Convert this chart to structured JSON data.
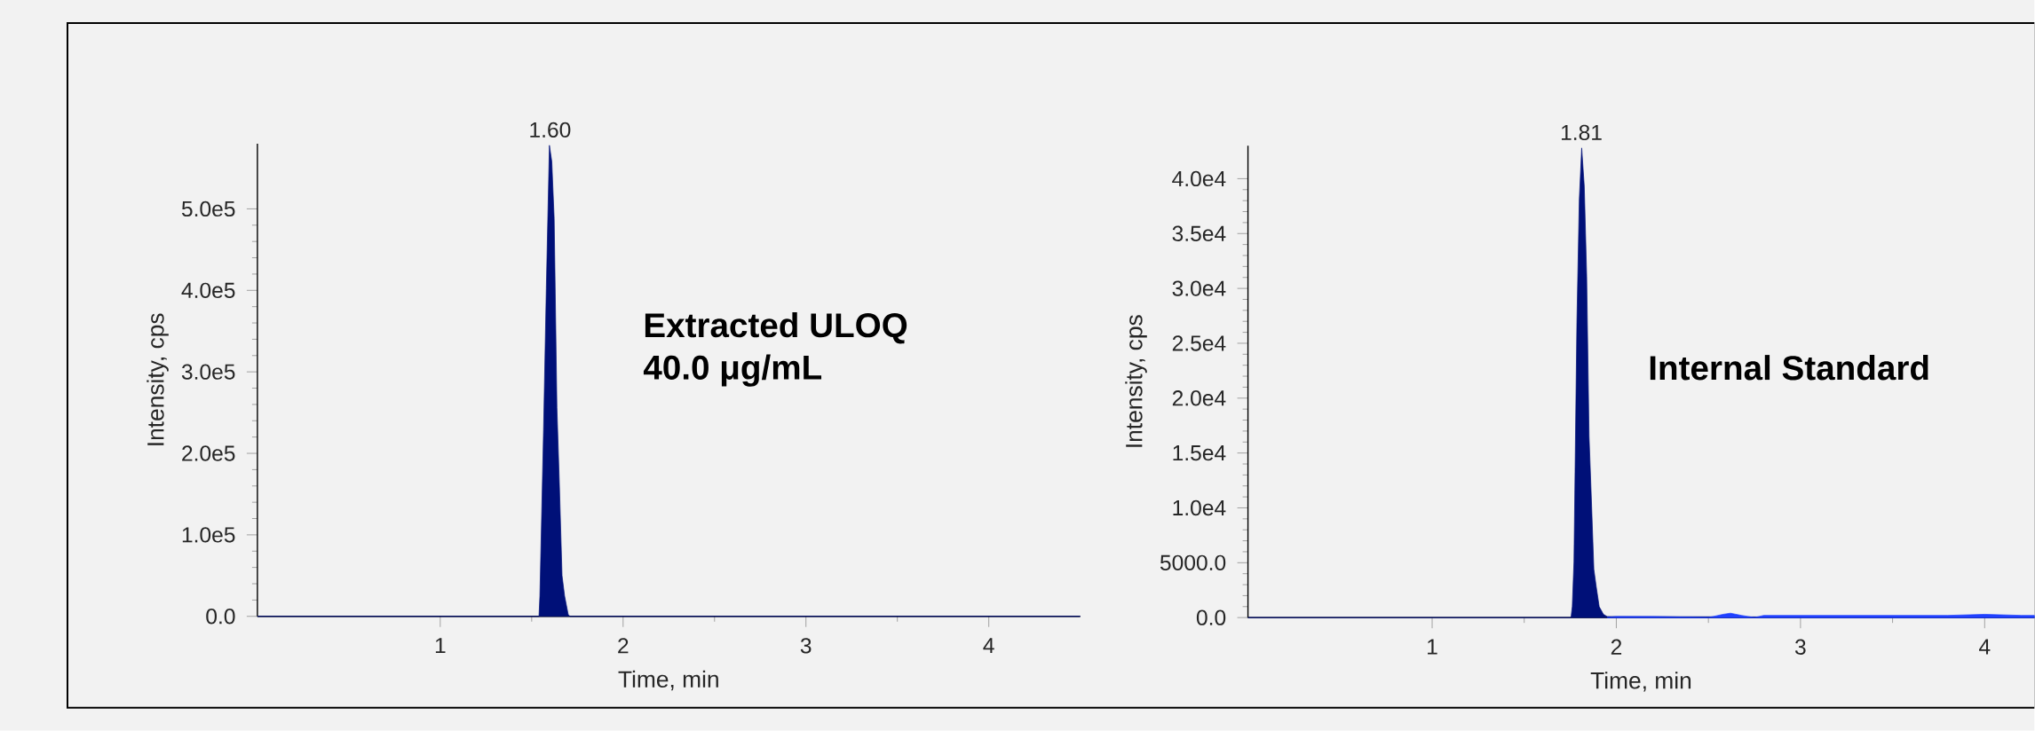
{
  "chart_data": [
    {
      "type": "area",
      "xlabel": "Time, min",
      "ylabel": "Intensity, cps",
      "xlim": [
        0,
        4.5
      ],
      "ylim": [
        0,
        580000
      ],
      "xticks": [
        1,
        2,
        3,
        4
      ],
      "yticks": [
        {
          "value": 0,
          "label": "0.0"
        },
        {
          "value": 100000,
          "label": "1.0e5"
        },
        {
          "value": 200000,
          "label": "2.0e5"
        },
        {
          "value": 300000,
          "label": "3.0e5"
        },
        {
          "value": 400000,
          "label": "4.0e5"
        },
        {
          "value": 500000,
          "label": "5.0e5"
        }
      ],
      "series": [
        {
          "color": "#001078",
          "x": [
            0,
            1.54,
            1.545,
            1.565,
            1.58,
            1.597,
            1.61,
            1.623,
            1.638,
            1.651,
            1.666,
            1.68,
            1.7,
            1.71,
            4.5
          ],
          "values": [
            0,
            0,
            25000,
            229000,
            402000,
            578000,
            558000,
            488000,
            256000,
            165000,
            50000,
            25000,
            2000,
            0,
            0
          ]
        }
      ],
      "annotations": [
        {
          "text": "1.60",
          "x": 1.6,
          "y": 578000
        },
        "Extracted ULOQ",
        "40.0 μg/mL"
      ]
    },
    {
      "type": "area",
      "xlabel": "Time, min",
      "ylabel": "Intensity, cps",
      "xlim": [
        0,
        4.27
      ],
      "ylim": [
        0,
        43000
      ],
      "xticks": [
        1,
        2,
        3,
        4
      ],
      "yticks": [
        {
          "value": 0,
          "label": "0.0"
        },
        {
          "value": 5000,
          "label": "5000.0"
        },
        {
          "value": 10000,
          "label": "1.0e4"
        },
        {
          "value": 15000,
          "label": "1.5e4"
        },
        {
          "value": 20000,
          "label": "2.0e4"
        },
        {
          "value": 25000,
          "label": "2.5e4"
        },
        {
          "value": 30000,
          "label": "3.0e4"
        },
        {
          "value": 35000,
          "label": "3.5e4"
        },
        {
          "value": 40000,
          "label": "4.0e4"
        }
      ],
      "series": [
        {
          "color": "#001078",
          "x": [
            0,
            1.754,
            1.761,
            1.77,
            1.786,
            1.799,
            1.812,
            1.826,
            1.839,
            1.852,
            1.865,
            1.878,
            1.891,
            1.907,
            1.93,
            1.95,
            4.27
          ],
          "values": [
            0,
            0,
            1000,
            5100,
            26900,
            38100,
            42800,
            39300,
            31100,
            16500,
            10600,
            4400,
            2800,
            1000,
            300,
            100,
            0
          ]
        },
        {
          "color": "#2040ff",
          "x": [
            1.95,
            2.0,
            2.2,
            2.5,
            2.58,
            2.62,
            2.68,
            2.75,
            2.8,
            3.0,
            3.2,
            3.5,
            3.8,
            4.0,
            4.2,
            4.27
          ],
          "values": [
            0,
            100,
            100,
            0,
            300,
            400,
            200,
            0,
            200,
            200,
            200,
            200,
            200,
            300,
            200,
            200
          ]
        }
      ],
      "annotations": [
        {
          "text": "1.81",
          "x": 1.81,
          "y": 42800
        },
        "Internal Standard"
      ]
    }
  ]
}
